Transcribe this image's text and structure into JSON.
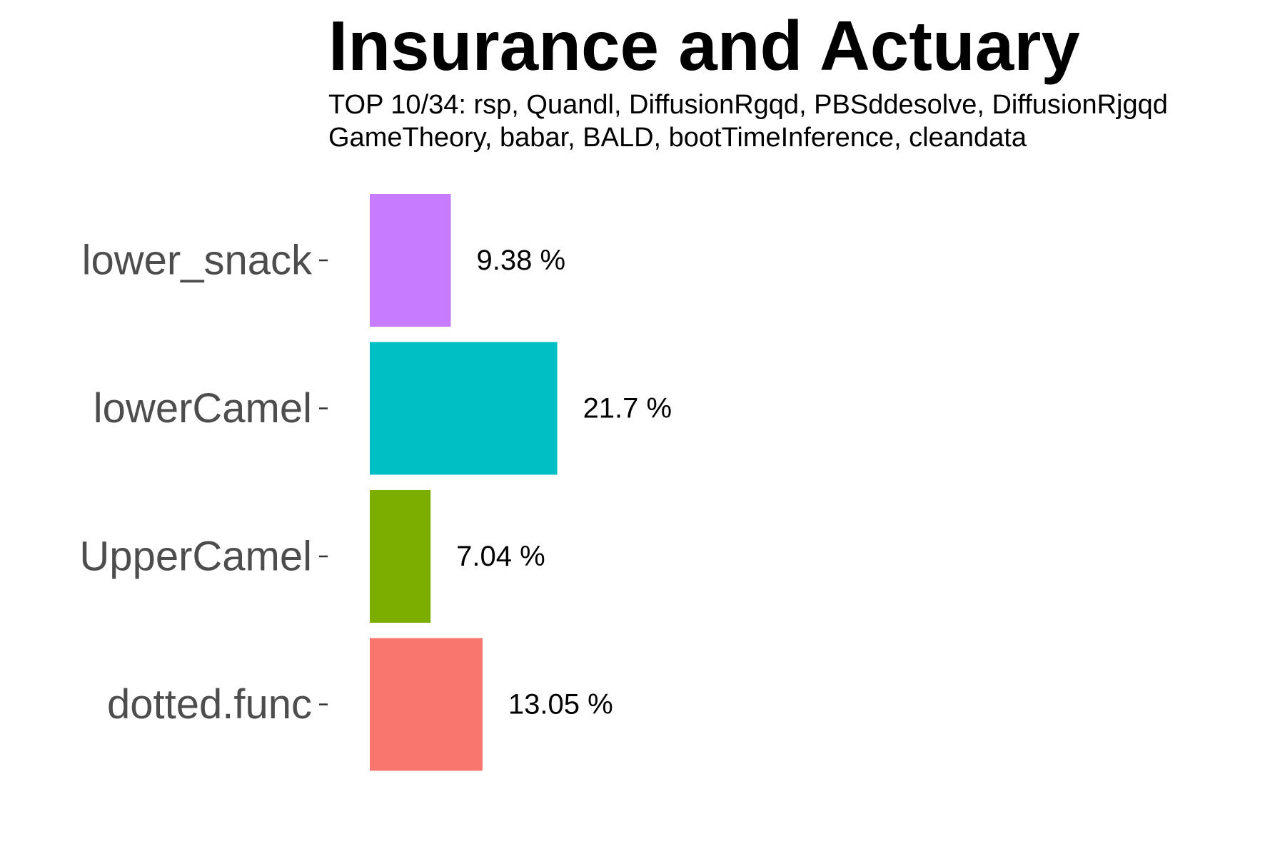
{
  "chart_data": {
    "type": "bar",
    "orientation": "horizontal",
    "title": "Insurance and Actuary",
    "subtitle_lines": [
      "TOP 10/34: rsp, Quandl, DiffusionRgqd, PBSddesolve, DiffusionRjgqd",
      "GameTheory, babar, BALD, bootTimeInference, cleandata"
    ],
    "xlabel": "",
    "ylabel": "",
    "categories": [
      "lower_snack",
      "lowerCamel",
      "UpperCamel",
      "dotted.func"
    ],
    "values": [
      9.38,
      21.7,
      7.04,
      13.05
    ],
    "value_labels": [
      "9.38 %",
      "21.7 %",
      "7.04 %",
      "13.05 %"
    ],
    "colors": [
      "#C77CFF",
      "#00BFC4",
      "#7CAE00",
      "#F8766D"
    ],
    "grid": false,
    "legend": "none"
  }
}
